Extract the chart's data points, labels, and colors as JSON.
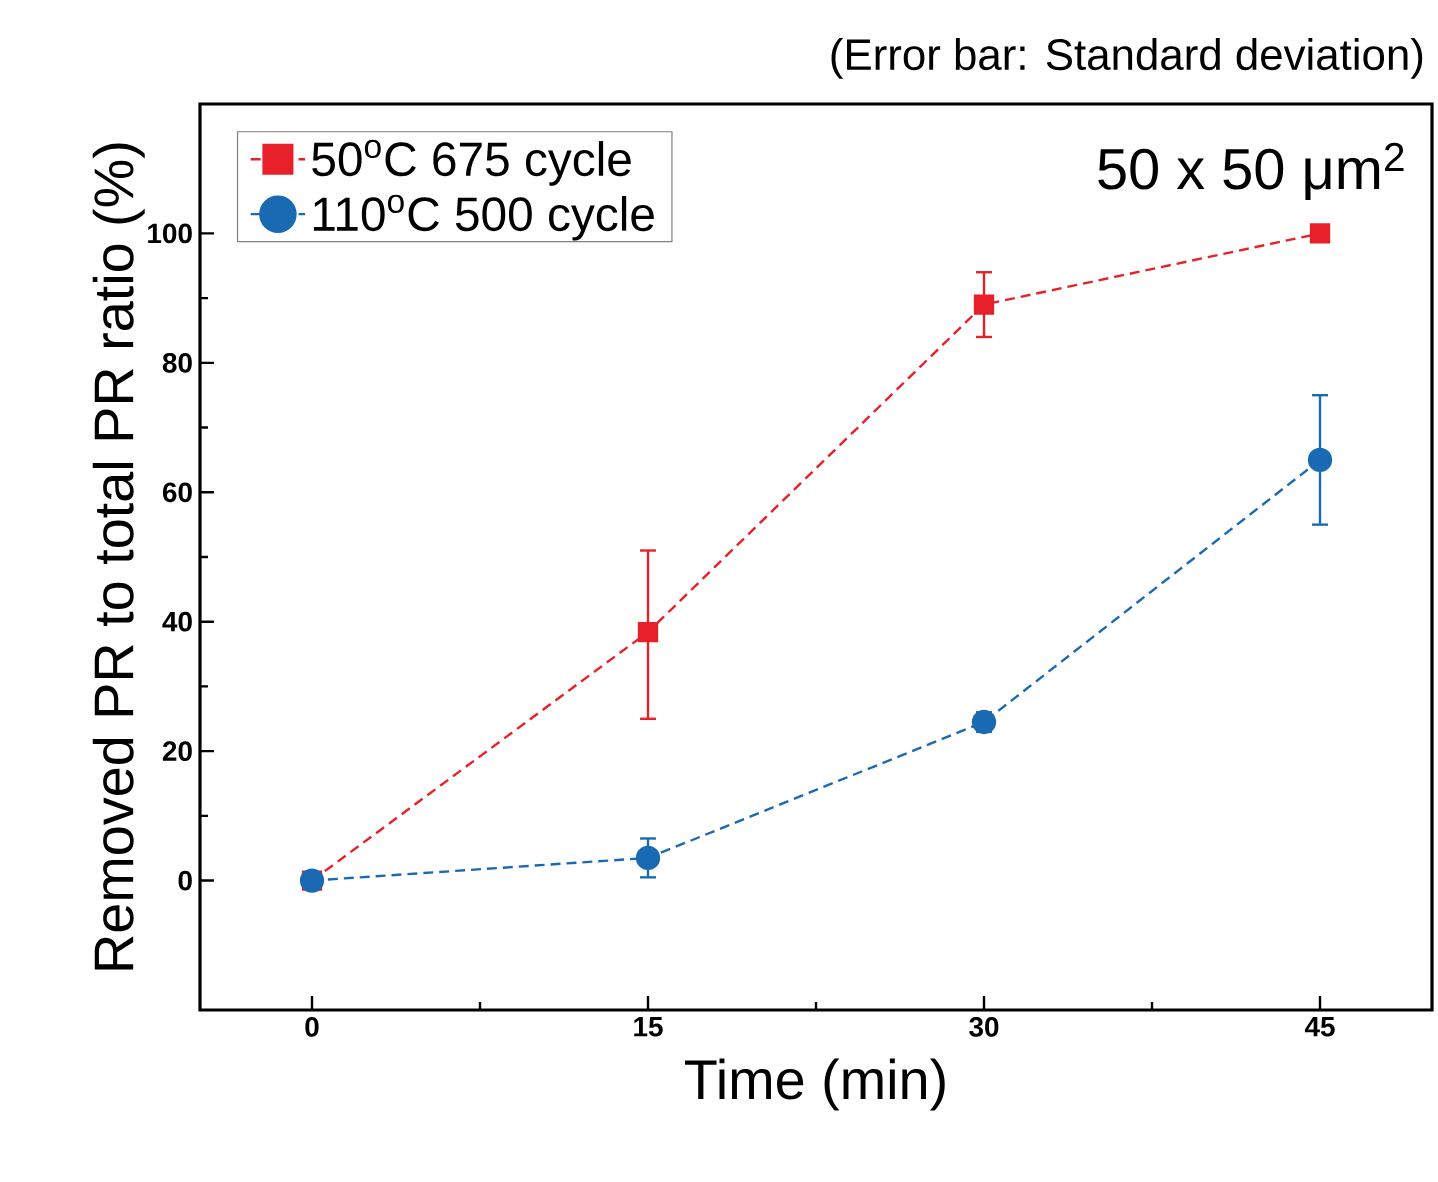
{
  "chart_data": {
    "type": "line",
    "xlabel": "Time (min)",
    "ylabel": "Removed PR to total PR ratio (%)",
    "annotations": [
      "(Error bar: Standard deviation)",
      "50 x 50 μm$^{2}$"
    ],
    "x": [
      0,
      15,
      30,
      45
    ],
    "series": [
      {
        "name": "50$^{o}$C 675 cycle",
        "color": "#e8202a",
        "marker": "square",
        "values": [
          0,
          38.4,
          89,
          100
        ],
        "errors": [
          null,
          [
            25,
            51
          ],
          5,
          null
        ]
      },
      {
        "name": "110$^{o}$C 500 cycle",
        "color": "#1a6ab3",
        "marker": "circle",
        "values": [
          0,
          3.5,
          24.5,
          65
        ],
        "errors": [
          null,
          3,
          1.5,
          10
        ]
      }
    ],
    "xlim": [
      -5,
      50
    ],
    "xticks": [
      0,
      15,
      30,
      45
    ],
    "ylim": [
      -20,
      120
    ],
    "yticks": [
      0,
      20,
      40,
      60,
      80,
      100
    ],
    "grid": false,
    "legend": "top left",
    "line_style": "dashed"
  }
}
